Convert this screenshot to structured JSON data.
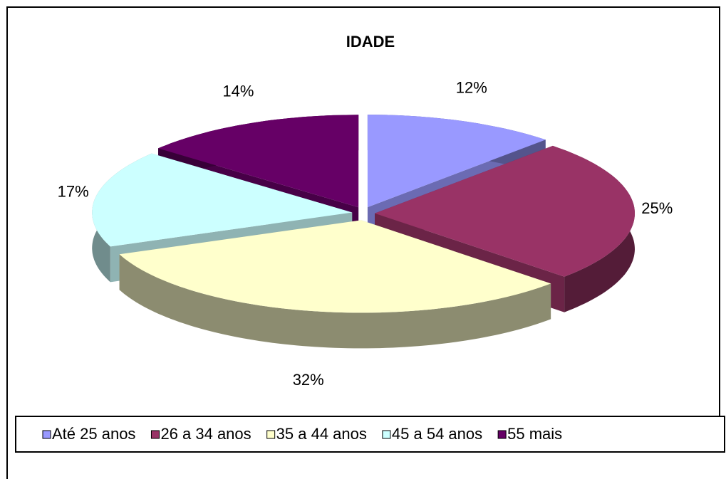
{
  "chart_data": {
    "type": "pie",
    "title": "IDADE",
    "categories": [
      "Até 25 anos",
      "26 a 34 anos",
      "35 a 44 anos",
      "45 a 54 anos",
      "55 mais"
    ],
    "values": [
      12,
      25,
      32,
      17,
      14
    ],
    "value_labels": [
      "12%",
      "25%",
      "32%",
      "17%",
      "14%"
    ],
    "colors": [
      "#9999ff",
      "#993366",
      "#ffffcc",
      "#ccffff",
      "#660066"
    ],
    "legend": "bottom"
  }
}
